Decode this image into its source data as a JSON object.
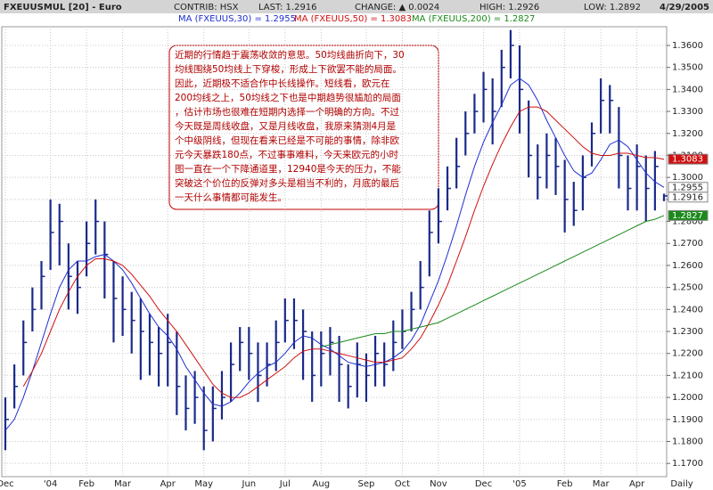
{
  "chart_data": {
    "type": "hlc",
    "header": [
      "FXEUUSMUL [20] - Euro",
      "CONTRIB: HSX",
      "LAST: 1.2916",
      "CHANGE: ▲ 0.0024",
      "HIGH: 1.2926",
      "LOW: 1.2892",
      "4/29/2005"
    ],
    "x_axis_label": "Daily",
    "annotation": [
      "近期的行情趋于震荡收敛的意思。50均线曲折向下，30",
      "均线围绕50均线上下穿梭，形成上下欲罢不能的局面。",
      "因此，近期极不适合作中长线操作。短线看，欧元在",
      "200均线之上，50均线之下也是中期趋势很尴尬的局面",
      "，估计市场也很难在短期内选择一个明确的方向。不过",
      "今天既是周线收盘，又是月线收盘，我原来猜测4月是",
      "个中级阴线，但现在看来已经是不可能的事情，除非欧",
      "元今天暴跌180点，不过事事难料，今天来欧元的小时",
      "图一直在一个下降通道里，12940是今天的压力，不能",
      "突破这个价位的反弹对多头是相当不利的，月底的最后",
      "一天什么事情都可能发生。"
    ],
    "categories": [
      "Dec",
      null,
      null,
      null,
      null,
      "'04",
      null,
      null,
      null,
      "Feb",
      null,
      null,
      null,
      "Mar",
      null,
      null,
      null,
      null,
      "Apr",
      null,
      null,
      null,
      "May",
      null,
      null,
      null,
      null,
      "Jun",
      null,
      null,
      null,
      "Jul",
      null,
      null,
      null,
      "Aug",
      null,
      null,
      null,
      null,
      "Sep",
      null,
      null,
      null,
      "Oct",
      null,
      null,
      null,
      "Nov",
      null,
      null,
      null,
      null,
      "Dec",
      null,
      null,
      null,
      "'05",
      null,
      null,
      null,
      null,
      "Feb",
      null,
      null,
      null,
      "Mar",
      null,
      null,
      null,
      "Apr",
      null,
      null,
      null
    ],
    "price": {
      "color": "#1a2a8a",
      "values": [
        1.19,
        1.205,
        1.225,
        1.24,
        1.255,
        1.275,
        1.28,
        1.255,
        1.25,
        1.27,
        1.28,
        1.265,
        1.245,
        1.24,
        1.235,
        1.23,
        1.225,
        1.22,
        1.225,
        1.205,
        1.195,
        1.2,
        1.185,
        1.195,
        1.2,
        1.215,
        1.225,
        1.22,
        1.21,
        1.215,
        1.225,
        1.235,
        1.235,
        1.23,
        1.21,
        1.22,
        1.225,
        1.215,
        1.205,
        1.215,
        1.21,
        1.22,
        1.215,
        1.225,
        1.23,
        1.24,
        1.25,
        1.275,
        1.28,
        1.295,
        1.305,
        1.32,
        1.33,
        1.34,
        1.33,
        1.35,
        1.36,
        1.34,
        1.31,
        1.3,
        1.31,
        1.305,
        1.29,
        1.285,
        1.3,
        1.32,
        1.335,
        1.335,
        1.31,
        1.295,
        1.305,
        1.295,
        1.305,
        1.2916
      ],
      "high": [
        1.2,
        1.215,
        1.235,
        1.25,
        1.262,
        1.29,
        1.288,
        1.27,
        1.262,
        1.28,
        1.29,
        1.28,
        1.262,
        1.255,
        1.248,
        1.245,
        1.238,
        1.232,
        1.238,
        1.23,
        1.21,
        1.212,
        1.205,
        1.205,
        1.212,
        1.225,
        1.232,
        1.232,
        1.225,
        1.225,
        1.235,
        1.245,
        1.245,
        1.24,
        1.23,
        1.23,
        1.232,
        1.228,
        1.215,
        1.225,
        1.22,
        1.228,
        1.225,
        1.235,
        1.24,
        1.248,
        1.262,
        1.285,
        1.295,
        1.305,
        1.318,
        1.33,
        1.338,
        1.348,
        1.345,
        1.358,
        1.367,
        1.36,
        1.335,
        1.315,
        1.32,
        1.318,
        1.308,
        1.298,
        1.31,
        1.325,
        1.345,
        1.342,
        1.332,
        1.31,
        1.315,
        1.31,
        1.312,
        1.2926
      ],
      "low": [
        1.176,
        1.195,
        1.21,
        1.23,
        1.24,
        1.258,
        1.26,
        1.24,
        1.238,
        1.255,
        1.265,
        1.245,
        1.225,
        1.228,
        1.22,
        1.208,
        1.21,
        1.205,
        1.205,
        1.192,
        1.185,
        1.188,
        1.176,
        1.18,
        1.19,
        1.198,
        1.212,
        1.208,
        1.198,
        1.205,
        1.212,
        1.225,
        1.222,
        1.208,
        1.198,
        1.205,
        1.21,
        1.198,
        1.195,
        1.2,
        1.198,
        1.205,
        1.205,
        1.212,
        1.222,
        1.23,
        1.24,
        1.255,
        1.27,
        1.285,
        1.295,
        1.31,
        1.32,
        1.325,
        1.315,
        1.332,
        1.345,
        1.32,
        1.3,
        1.29,
        1.295,
        1.292,
        1.275,
        1.278,
        1.285,
        1.305,
        1.32,
        1.32,
        1.295,
        1.285,
        1.285,
        1.28,
        1.285,
        1.2892
      ]
    },
    "series": [
      {
        "name": "MA (FXEUUS,30) = 1.2955",
        "color": "#1f2fd0",
        "values": [
          1.185,
          1.19,
          1.2,
          1.212,
          1.225,
          1.238,
          1.25,
          1.258,
          1.262,
          1.262,
          1.264,
          1.265,
          1.262,
          1.258,
          1.252,
          1.245,
          1.238,
          1.232,
          1.228,
          1.222,
          1.214,
          1.208,
          1.202,
          1.197,
          1.196,
          1.198,
          1.202,
          1.207,
          1.211,
          1.214,
          1.216,
          1.22,
          1.225,
          1.228,
          1.227,
          1.224,
          1.222,
          1.219,
          1.216,
          1.215,
          1.214,
          1.215,
          1.216,
          1.218,
          1.221,
          1.226,
          1.233,
          1.243,
          1.253,
          1.265,
          1.278,
          1.292,
          1.305,
          1.316,
          1.325,
          1.333,
          1.342,
          1.345,
          1.342,
          1.335,
          1.326,
          1.318,
          1.31,
          1.303,
          1.3,
          1.302,
          1.308,
          1.315,
          1.317,
          1.314,
          1.308,
          1.302,
          1.298,
          1.2955
        ]
      },
      {
        "name": "MA (FXEUUS,50) = 1.3083",
        "color": "#d01010",
        "values": [
          null,
          null,
          1.205,
          1.212,
          1.22,
          1.23,
          1.24,
          1.248,
          1.255,
          1.26,
          1.263,
          1.263,
          1.262,
          1.26,
          1.256,
          1.251,
          1.246,
          1.24,
          1.235,
          1.23,
          1.224,
          1.218,
          1.212,
          1.206,
          1.202,
          1.2,
          1.2,
          1.202,
          1.205,
          1.208,
          1.211,
          1.214,
          1.218,
          1.221,
          1.222,
          1.222,
          1.221,
          1.22,
          1.219,
          1.218,
          1.217,
          1.216,
          1.216,
          1.217,
          1.218,
          1.222,
          1.227,
          1.234,
          1.242,
          1.251,
          1.262,
          1.273,
          1.285,
          1.296,
          1.306,
          1.315,
          1.323,
          1.33,
          1.332,
          1.332,
          1.33,
          1.326,
          1.322,
          1.318,
          1.314,
          1.311,
          1.31,
          1.31,
          1.311,
          1.311,
          1.31,
          1.309,
          1.309,
          1.3083
        ]
      },
      {
        "name": "MA (FXEUUS,200) = 1.2827",
        "color": "#1a8a1a",
        "values": [
          null,
          null,
          null,
          null,
          null,
          null,
          null,
          null,
          null,
          null,
          null,
          null,
          null,
          null,
          null,
          null,
          null,
          null,
          null,
          null,
          null,
          null,
          null,
          null,
          null,
          null,
          null,
          null,
          null,
          null,
          null,
          null,
          null,
          null,
          null,
          1.223,
          1.224,
          1.225,
          1.226,
          1.227,
          1.228,
          1.229,
          1.229,
          1.23,
          1.23,
          1.231,
          1.232,
          1.233,
          1.234,
          1.236,
          1.238,
          1.24,
          1.242,
          1.244,
          1.246,
          1.248,
          1.25,
          1.252,
          1.254,
          1.256,
          1.258,
          1.26,
          1.262,
          1.264,
          1.266,
          1.268,
          1.27,
          1.272,
          1.274,
          1.276,
          1.278,
          1.28,
          1.281,
          1.2827
        ]
      }
    ],
    "ylim": [
      1.164,
      1.3685
    ],
    "yticks": [
      {
        "value": 1.17,
        "label": "1.1700"
      },
      {
        "value": 1.18,
        "label": "1.1800"
      },
      {
        "value": 1.19,
        "label": "1.1900"
      },
      {
        "value": 1.2,
        "label": "1.2000"
      },
      {
        "value": 1.21,
        "label": "1.2100"
      },
      {
        "value": 1.22,
        "label": "1.2200"
      },
      {
        "value": 1.23,
        "label": "1.2300"
      },
      {
        "value": 1.24,
        "label": "1.2400"
      },
      {
        "value": 1.25,
        "label": "1.2500"
      },
      {
        "value": 1.26,
        "label": "1.2600"
      },
      {
        "value": 1.27,
        "label": "1.2700"
      },
      {
        "value": 1.28,
        "label": "1.2800"
      },
      {
        "value": 1.29,
        "label": "1.2900"
      },
      {
        "value": 1.3,
        "label": "1.3000"
      },
      {
        "value": 1.31,
        "label": "1.3100"
      },
      {
        "value": 1.32,
        "label": "1.3200"
      },
      {
        "value": 1.33,
        "label": "1.3300"
      },
      {
        "value": 1.34,
        "label": "1.3400"
      },
      {
        "value": 1.35,
        "label": "1.3500"
      },
      {
        "value": 1.36,
        "label": "1.3600"
      }
    ],
    "grid": true
  }
}
